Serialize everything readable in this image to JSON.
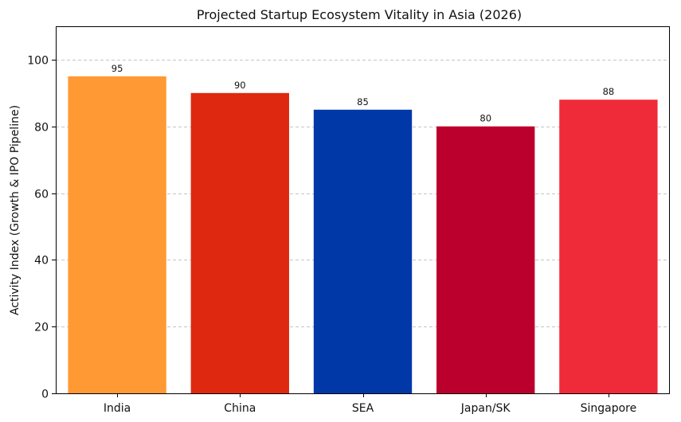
{
  "chart_data": {
    "type": "bar",
    "title": "Projected Startup Ecosystem Vitality in Asia (2026)",
    "xlabel": "",
    "ylabel": "Activity Index (Growth & IPO Pipeline)",
    "categories": [
      "India",
      "China",
      "SEA",
      "Japan/SK",
      "Singapore"
    ],
    "values": [
      95,
      90,
      85,
      80,
      88
    ],
    "data_labels": [
      "95",
      "90",
      "85",
      "80",
      "88"
    ],
    "colors": [
      "#FF9933",
      "#DE2910",
      "#0038A8",
      "#BC002D",
      "#EF2B3A"
    ],
    "ylim": [
      0,
      110
    ],
    "yticks": [
      0,
      20,
      40,
      60,
      80,
      100
    ],
    "ytick_labels": [
      "0",
      "20",
      "40",
      "60",
      "80",
      "100"
    ],
    "grid": "y-dashed"
  }
}
